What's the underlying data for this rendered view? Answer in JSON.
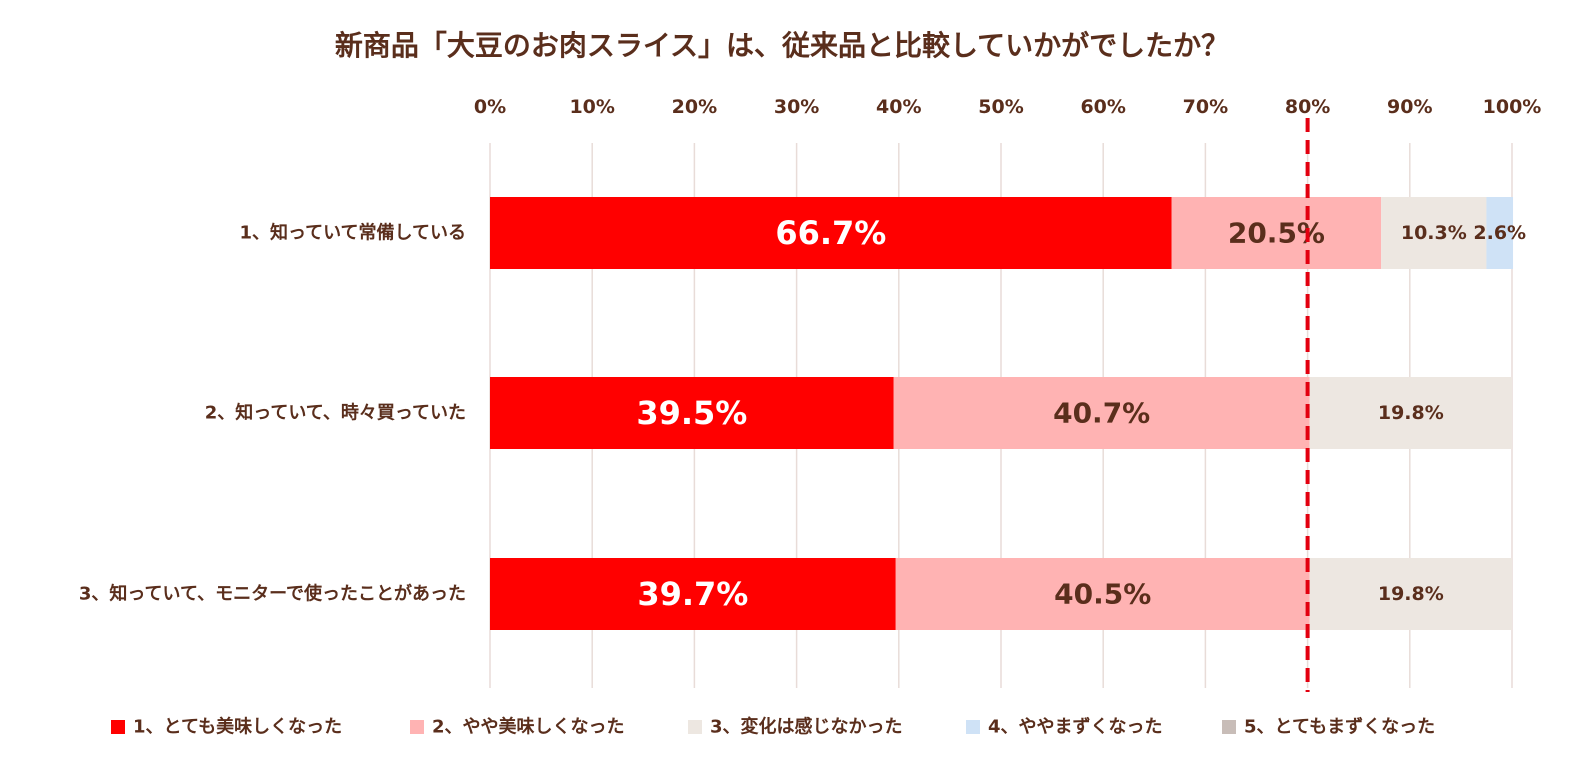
{
  "chart_data": {
    "type": "bar",
    "orientation": "horizontal-stacked-100",
    "title": "新商品「大豆のお肉スライス」は、従来品と比較していかがでしたか？",
    "xlim": [
      0,
      100
    ],
    "x_ticks": [
      "0%",
      "10%",
      "20%",
      "30%",
      "40%",
      "50%",
      "60%",
      "70%",
      "80%",
      "90%",
      "100%"
    ],
    "grid": true,
    "reference_line": {
      "value": 80,
      "style": "dashed",
      "color": "#e3000f"
    },
    "legend_position": "bottom",
    "categories": [
      "1、知っていて常備している",
      "2、知っていて、時々買っていた",
      "3、知っていて、モニターで使ったことがあった"
    ],
    "series": [
      {
        "name": "1、とても美味しくなった",
        "color": "#ff0000",
        "label_color": "#ffffff",
        "values": [
          66.7,
          39.5,
          39.7
        ],
        "labels": [
          "66.7%",
          "39.5%",
          "39.7%"
        ]
      },
      {
        "name": "2、やや美味しくなった",
        "color": "#ffb3b3",
        "label_color": "#5a2e1c",
        "values": [
          20.5,
          40.7,
          40.5
        ],
        "labels": [
          "20.5%",
          "40.7%",
          "40.5%"
        ]
      },
      {
        "name": "3、変化は感じなかった",
        "color": "#ede7e1",
        "label_color": "#5a2e1c",
        "values": [
          10.3,
          19.8,
          19.8
        ],
        "labels": [
          "10.3%",
          "19.8%",
          "19.8%"
        ]
      },
      {
        "name": "4、ややまずくなった",
        "color": "#cfe2f6",
        "label_color": "#5a2e1c",
        "values": [
          2.6,
          0,
          0
        ],
        "labels": [
          "2.6%",
          "",
          ""
        ]
      },
      {
        "name": "5、とてもまずくなった",
        "color": "#c8bdb8",
        "label_color": "#5a2e1c",
        "values": [
          0,
          0,
          0
        ],
        "labels": [
          "",
          "",
          ""
        ]
      }
    ]
  }
}
